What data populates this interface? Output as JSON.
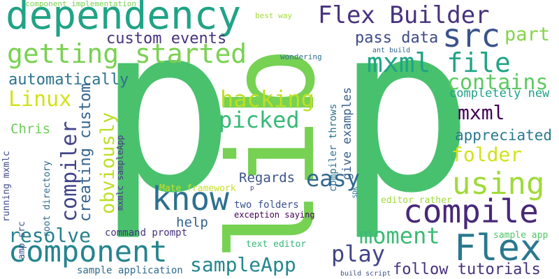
{
  "colors": {
    "yellow": "#d2e21b",
    "lime": "#a0da39",
    "green": "#4ac16d",
    "lightgreen": "#77d153",
    "teal": "#1fa187",
    "bluegreen": "#26828e",
    "blue": "#2d708e",
    "slate": "#3a538b",
    "purple": "#443983",
    "darkpurple": "#46327e"
  },
  "words": [
    {
      "text": "p",
      "color": "#4ac16d"
    },
    {
      "text": "p",
      "color": "#48c16e"
    },
    {
      "text": "lib",
      "color": "#77d153"
    },
    {
      "text": "dependency",
      "color": "#20a386"
    },
    {
      "text": "Flex Builder",
      "color": "#46327e"
    },
    {
      "text": "src",
      "color": "#3a538b"
    },
    {
      "text": "part",
      "color": "#84d44b"
    },
    {
      "text": "getting started",
      "color": "#7ad151"
    },
    {
      "text": "custom events",
      "color": "#46327e"
    },
    {
      "text": "pass data",
      "color": "#3e4a89"
    },
    {
      "text": "mxml file",
      "color": "#20a486"
    },
    {
      "text": "automatically",
      "color": "#2c728e"
    },
    {
      "text": "contains",
      "color": "#5ec962"
    },
    {
      "text": "Linux",
      "color": "#d2e21b"
    },
    {
      "text": "hacking",
      "color": "#bddf26"
    },
    {
      "text": "completely new",
      "color": "#1fa187"
    },
    {
      "text": "picked",
      "color": "#38b977"
    },
    {
      "text": "mxml",
      "color": "#440154"
    },
    {
      "text": "appreciated",
      "color": "#2a788e"
    },
    {
      "text": "Chris",
      "color": "#6ccd5a"
    },
    {
      "text": "folder",
      "color": "#d2e21b"
    },
    {
      "text": "using",
      "color": "#a0da39"
    },
    {
      "text": "easy",
      "color": "#31688e"
    },
    {
      "text": "Regards",
      "color": "#3b528b"
    },
    {
      "text": "know",
      "color": "#2d708e"
    },
    {
      "text": "compile",
      "color": "#482878"
    },
    {
      "text": "resolve",
      "color": "#27808e"
    },
    {
      "text": "component",
      "color": "#25848e"
    },
    {
      "text": "Flex",
      "color": "#2a788e"
    },
    {
      "text": "moment",
      "color": "#3bbb75"
    },
    {
      "text": "play",
      "color": "#414487"
    },
    {
      "text": "sampleApp",
      "color": "#24878e"
    },
    {
      "text": "follow tutorials",
      "color": "#46327e"
    },
    {
      "text": "help",
      "color": "#33638d"
    },
    {
      "text": "command prompt",
      "color": "#46337f"
    },
    {
      "text": "two folders",
      "color": "#3b528b"
    },
    {
      "text": "exception saying",
      "color": "#440154"
    },
    {
      "text": "text editor",
      "color": "#35b779"
    },
    {
      "text": "sample application",
      "color": "#2f6c8e"
    },
    {
      "text": "sample app",
      "color": "#52c569"
    },
    {
      "text": "editor rather",
      "color": "#a0da39"
    },
    {
      "text": "Mate framework",
      "color": "#c8e020"
    },
    {
      "text": "component implementation",
      "color": "#7ad151"
    },
    {
      "text": "best way",
      "color": "#a5db36"
    },
    {
      "text": "wondering",
      "color": "#2d708e"
    },
    {
      "text": "ant build",
      "color": "#31688e"
    },
    {
      "text": "build script",
      "color": "#3b528b"
    },
    {
      "text": "p",
      "color": "#46327e"
    },
    {
      "text": "compiler",
      "color": "#414487"
    },
    {
      "text": "obviously",
      "color": "#bddf26"
    },
    {
      "text": "creating custom",
      "color": "#33638d"
    },
    {
      "text": "give examples",
      "color": "#355f8d"
    },
    {
      "text": "compiler throws",
      "color": "#2c728e"
    },
    {
      "text": "mxmlc sampleApp",
      "color": "#46337f"
    },
    {
      "text": "root directory",
      "color": "#2f6c8e"
    },
    {
      "text": "running mxmlc",
      "color": "#3e4a89"
    },
    {
      "text": "amp src",
      "color": "#3b528b"
    },
    {
      "text": "SDK",
      "color": "#2c728e"
    }
  ]
}
